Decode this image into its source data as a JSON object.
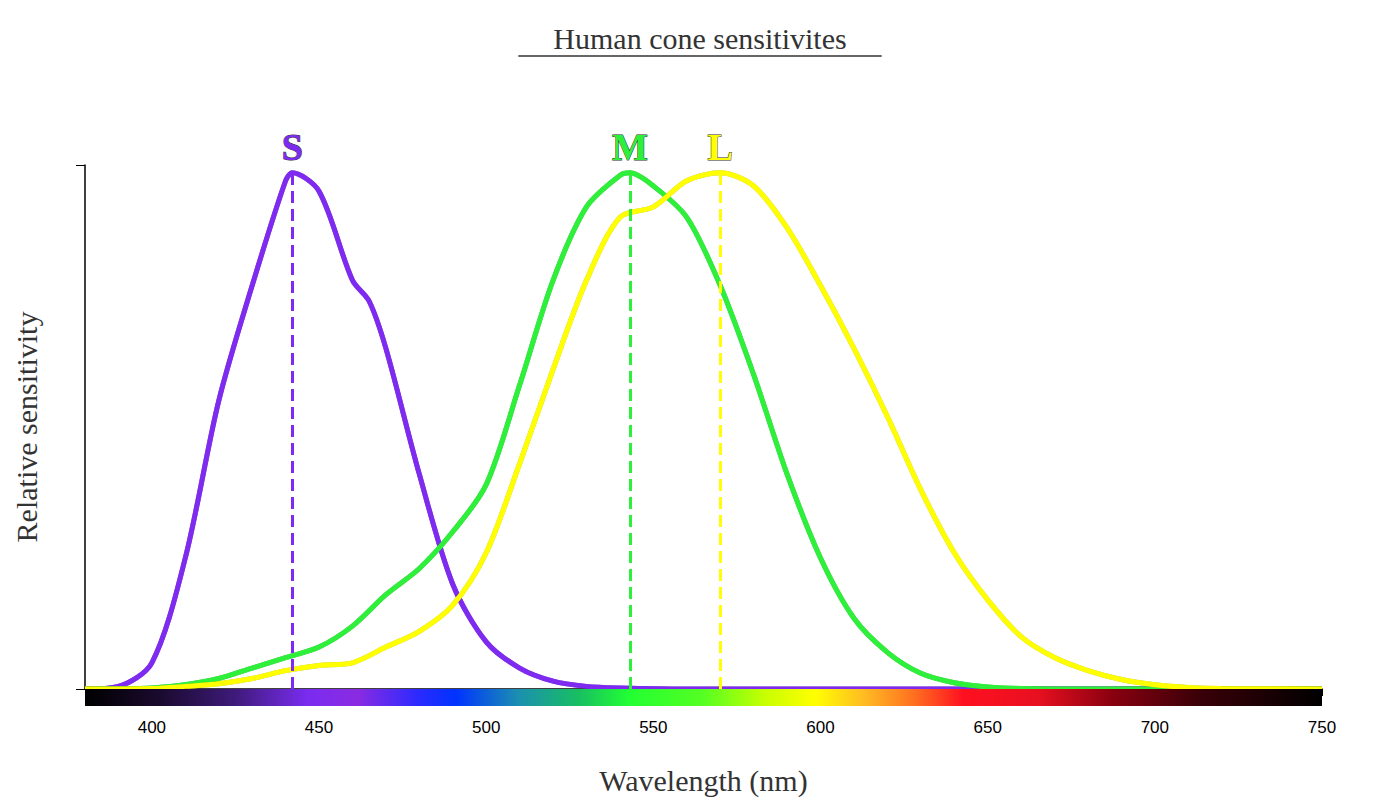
{
  "chart_data": {
    "type": "line",
    "title": "Human cone sensitivites",
    "x_label": "Wavelength (nm)",
    "y_label": "Relative sensitivity",
    "xlim": [
      380,
      750
    ],
    "xticks": [
      400,
      450,
      500,
      550,
      600,
      650,
      700,
      750
    ],
    "ylim": [
      0,
      1
    ],
    "yticks": [
      0,
      1
    ],
    "tick_labels": "x",
    "grid": false,
    "series": [
      {
        "name": "S",
        "color": "#7f2af0",
        "line_style": "solid",
        "peak": [
          442,
          0.985
        ],
        "x": [
          380,
          390,
          400,
          410,
          420,
          430,
          440,
          442,
          450,
          460,
          465,
          470,
          480,
          490,
          500,
          510,
          520,
          530,
          540,
          560,
          600,
          650,
          700,
          750
        ],
        "values": [
          0,
          0.005,
          0.05,
          0.25,
          0.55,
          0.77,
          0.97,
          0.985,
          0.95,
          0.78,
          0.74,
          0.65,
          0.41,
          0.2,
          0.09,
          0.04,
          0.015,
          0.005,
          0.002,
          0,
          0,
          0,
          0,
          0
        ]
      },
      {
        "name": "M",
        "color": "#2ef03a",
        "line_style": "solid",
        "peak": [
          543,
          0.985
        ],
        "x": [
          380,
          400,
          410,
          420,
          430,
          440,
          450,
          460,
          470,
          480,
          490,
          500,
          510,
          520,
          530,
          540,
          543,
          550,
          560,
          570,
          580,
          590,
          600,
          610,
          620,
          630,
          640,
          650,
          660,
          680,
          700,
          750
        ],
        "values": [
          0,
          0.002,
          0.008,
          0.02,
          0.04,
          0.06,
          0.08,
          0.12,
          0.18,
          0.23,
          0.3,
          0.39,
          0.58,
          0.78,
          0.92,
          0.98,
          0.985,
          0.96,
          0.9,
          0.77,
          0.6,
          0.41,
          0.25,
          0.135,
          0.07,
          0.03,
          0.012,
          0.004,
          0.001,
          0,
          0,
          0
        ]
      },
      {
        "name": "L",
        "color": "#ffff00",
        "line_style": "solid",
        "peak": [
          570,
          0.985
        ],
        "x": [
          380,
          400,
          410,
          420,
          430,
          440,
          450,
          460,
          470,
          480,
          490,
          500,
          510,
          520,
          530,
          540,
          550,
          560,
          570,
          580,
          590,
          600,
          610,
          620,
          630,
          640,
          650,
          660,
          670,
          680,
          690,
          700,
          710,
          720,
          750
        ],
        "values": [
          0,
          0.001,
          0.005,
          0.01,
          0.02,
          0.035,
          0.045,
          0.05,
          0.08,
          0.11,
          0.16,
          0.26,
          0.43,
          0.61,
          0.78,
          0.9,
          0.92,
          0.97,
          0.985,
          0.96,
          0.88,
          0.77,
          0.65,
          0.52,
          0.38,
          0.26,
          0.17,
          0.1,
          0.06,
          0.035,
          0.018,
          0.008,
          0.003,
          0.001,
          0
        ]
      }
    ]
  }
}
